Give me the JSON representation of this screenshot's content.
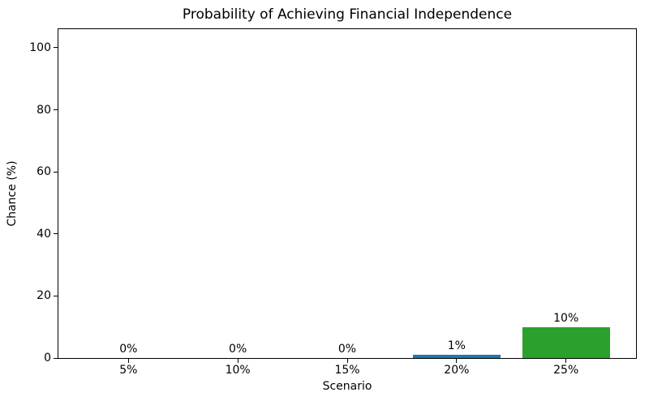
{
  "chart_data": {
    "type": "bar",
    "title": "Probability of Achieving Financial Independence",
    "xlabel": "Scenario",
    "ylabel": "Chance (%)",
    "categories": [
      "5%",
      "10%",
      "15%",
      "20%",
      "25%"
    ],
    "values": [
      0,
      0,
      0,
      1,
      10
    ],
    "bar_labels": [
      "0%",
      "0%",
      "0%",
      "1%",
      "10%"
    ],
    "bar_colors": [
      "#1f77b4",
      "#1f77b4",
      "#1f77b4",
      "#1f77b4",
      "#2ca02c"
    ],
    "yticks": [
      0,
      20,
      40,
      60,
      80,
      100
    ],
    "ytick_labels": [
      "0",
      "20",
      "40",
      "60",
      "80",
      "100"
    ],
    "ylim": [
      0,
      106
    ],
    "xlim": [
      -0.64,
      4.64
    ],
    "bar_width_data_units": 0.8,
    "grid": false,
    "legend": null,
    "background_color": "#ffffff",
    "text_color": "#000000",
    "spine_color": "#000000"
  }
}
